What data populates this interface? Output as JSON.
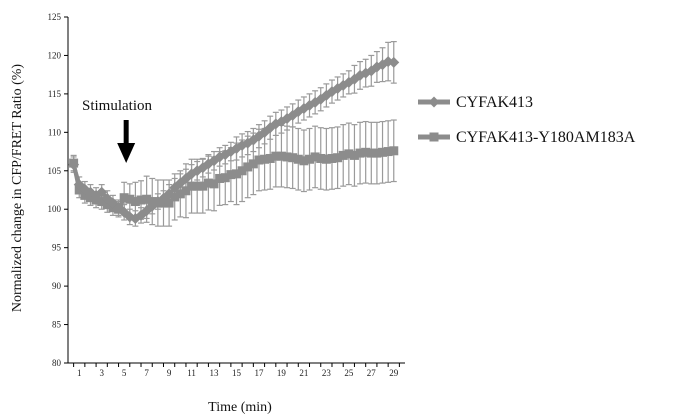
{
  "chart_data": {
    "type": "line",
    "xlabel": "Time (min)",
    "ylabel": "Normalized change in CFP/FRET Ratio  (%)",
    "ylim": [
      80,
      125
    ],
    "y_ticks": [
      80,
      85,
      90,
      95,
      100,
      105,
      110,
      115,
      120,
      125
    ],
    "x_ticks": [
      1,
      3,
      5,
      7,
      9,
      11,
      13,
      15,
      17,
      19,
      21,
      23,
      25,
      27,
      29
    ],
    "x_range": [
      0,
      30
    ],
    "grid": false,
    "legend_position": "right",
    "annotation": {
      "text": "Stimulation",
      "x": 5
    },
    "series": [
      {
        "name": "CYFAK413",
        "color": "#8c8c8c",
        "marker": "diamond",
        "x": [
          0.5,
          1,
          1.5,
          2,
          2.5,
          3,
          3.5,
          4,
          4.5,
          5,
          5.5,
          6,
          6.5,
          7,
          7.5,
          8,
          8.5,
          9,
          9.5,
          10,
          10.5,
          11,
          11.5,
          12,
          12.5,
          13,
          13.5,
          14,
          14.5,
          15,
          15.5,
          16,
          16.5,
          17,
          17.5,
          18,
          18.5,
          19,
          19.5,
          20,
          20.5,
          21,
          21.5,
          22,
          22.5,
          23,
          23.5,
          24,
          24.5,
          25,
          25.5,
          26,
          26.5,
          27,
          27.5,
          28,
          28.5,
          29
        ],
        "y": [
          105.8,
          103.2,
          102.6,
          102.2,
          101.8,
          102.2,
          101.4,
          100.8,
          100.2,
          99.6,
          99.0,
          98.8,
          99.2,
          99.8,
          100.4,
          101.0,
          101.4,
          102.0,
          102.8,
          103.4,
          104.0,
          104.6,
          105.0,
          105.4,
          105.9,
          106.3,
          106.8,
          107.1,
          107.5,
          107.9,
          108.3,
          108.6,
          109.0,
          109.5,
          110.0,
          110.6,
          111.1,
          111.4,
          111.8,
          112.2,
          112.7,
          113.1,
          113.5,
          113.9,
          114.3,
          114.8,
          115.3,
          115.7,
          116.1,
          116.5,
          116.9,
          117.4,
          117.7,
          118.0,
          118.5,
          118.8,
          119.2,
          119.1
        ],
        "err": [
          1.0,
          1.0,
          1.0,
          1.0,
          1.0,
          1.0,
          1.0,
          1.0,
          1.0,
          1.0,
          1.0,
          1.0,
          1.0,
          1.0,
          1.0,
          1.0,
          1.0,
          1.2,
          1.2,
          1.2,
          1.2,
          1.2,
          1.2,
          1.2,
          1.2,
          1.2,
          1.2,
          1.2,
          1.2,
          1.5,
          1.5,
          1.5,
          1.5,
          1.5,
          1.5,
          1.5,
          1.5,
          1.5,
          1.5,
          1.5,
          1.5,
          1.5,
          1.5,
          1.5,
          1.5,
          1.5,
          1.5,
          1.5,
          1.5,
          1.5,
          1.8,
          1.8,
          1.8,
          2.0,
          2.0,
          2.2,
          2.5,
          2.7
        ]
      },
      {
        "name": "CYFAK413-Y180AM183A",
        "color": "#8c8c8c",
        "marker": "square",
        "x": [
          0.5,
          1,
          1.5,
          2,
          2.5,
          3,
          3.5,
          4,
          4.5,
          5,
          5.5,
          6,
          6.5,
          7,
          7.5,
          8,
          8.5,
          9,
          9.5,
          10,
          10.5,
          11,
          11.5,
          12,
          12.5,
          13,
          13.5,
          14,
          14.5,
          15,
          15.5,
          16,
          16.5,
          17,
          17.5,
          18,
          18.5,
          19,
          19.5,
          20,
          20.5,
          21,
          21.5,
          22,
          22.5,
          23,
          23.5,
          24,
          24.5,
          25,
          25.5,
          26,
          26.5,
          27,
          27.5,
          28,
          28.5,
          29
        ],
        "y": [
          106.0,
          102.5,
          101.8,
          101.5,
          101.2,
          101.0,
          100.6,
          100.2,
          100.0,
          101.5,
          101.3,
          101.0,
          101.2,
          101.3,
          101.0,
          100.8,
          100.8,
          100.8,
          101.6,
          102.0,
          102.4,
          103.0,
          103.0,
          103.0,
          103.4,
          103.3,
          104.0,
          104.1,
          104.5,
          104.6,
          105.0,
          105.5,
          105.9,
          106.4,
          106.5,
          106.6,
          106.9,
          106.9,
          106.8,
          106.7,
          106.5,
          106.3,
          106.5,
          106.8,
          106.6,
          106.5,
          106.6,
          106.7,
          107.0,
          107.2,
          107.0,
          107.3,
          107.4,
          107.3,
          107.3,
          107.4,
          107.5,
          107.6
        ],
        "err": [
          1.0,
          1.0,
          1.0,
          1.0,
          1.0,
          1.0,
          1.0,
          1.0,
          1.0,
          2.0,
          2.0,
          2.5,
          2.5,
          3.0,
          3.0,
          3.0,
          3.0,
          3.0,
          3.0,
          3.0,
          3.5,
          3.5,
          3.5,
          3.5,
          3.5,
          3.5,
          3.5,
          3.5,
          3.5,
          4.0,
          4.0,
          4.0,
          4.0,
          4.0,
          4.0,
          4.0,
          4.0,
          4.0,
          4.0,
          4.0,
          4.0,
          4.0,
          4.0,
          4.0,
          4.0,
          4.0,
          4.0,
          4.0,
          4.0,
          4.0,
          4.0,
          4.0,
          4.0,
          4.0,
          4.0,
          4.0,
          4.0,
          4.0
        ]
      }
    ]
  }
}
